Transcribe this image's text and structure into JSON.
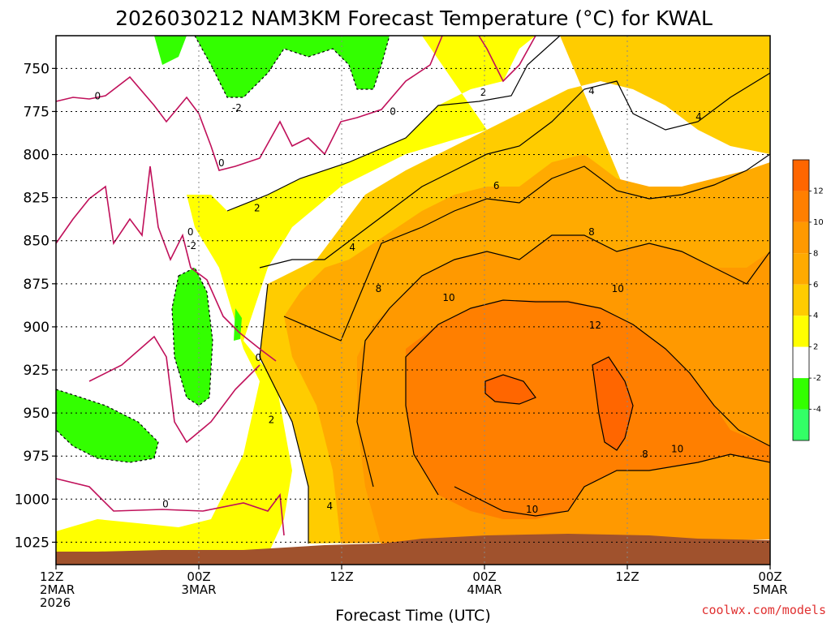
{
  "title": "2026030212 NAM3KM Forecast Temperature (°C) for KWAL",
  "credit": "coolwx.com/models",
  "colors": {
    "band_neg4": "#33ff66",
    "band_neg2": "#33ff00",
    "band_0": "#ffffff",
    "band_2": "#ffff00",
    "band_4": "#ffcc00",
    "band_6": "#ffaa00",
    "band_8": "#ff9900",
    "band_10": "#ff7f00",
    "band_12": "#ff6600",
    "ground": "#a0522d",
    "freezing_line": "#c0105a",
    "contour": "#000000"
  },
  "chart_data": {
    "type": "heatmap",
    "xlabel": "Forecast Time (UTC)",
    "ylabel": "",
    "x_ticks": [
      {
        "hour": 0,
        "lines": [
          "12Z",
          "2MAR",
          "2026"
        ]
      },
      {
        "hour": 12,
        "lines": [
          "00Z",
          "3MAR"
        ]
      },
      {
        "hour": 24,
        "lines": [
          "12Z"
        ]
      },
      {
        "hour": 36,
        "lines": [
          "00Z",
          "4MAR"
        ]
      },
      {
        "hour": 48,
        "lines": [
          "12Z"
        ]
      },
      {
        "hour": 60,
        "lines": [
          "00Z",
          "5MAR"
        ]
      }
    ],
    "xlim": [
      0,
      60
    ],
    "y_ticks": [
      750,
      775,
      800,
      825,
      850,
      875,
      900,
      925,
      950,
      975,
      1000,
      1025
    ],
    "ylim": [
      731,
      1038
    ],
    "colorbar": {
      "ticks": [
        12,
        10,
        8,
        6,
        4,
        2,
        -2,
        -4
      ]
    },
    "temperature_levels": [
      -4,
      -2,
      0,
      2,
      4,
      6,
      8,
      10,
      12
    ],
    "contour_labels": [
      {
        "text": "0",
        "hour": 3.5,
        "pres": 766
      },
      {
        "text": "-2",
        "hour": 15.2,
        "pres": 773
      },
      {
        "text": "0",
        "hour": 13.9,
        "pres": 805
      },
      {
        "text": "0",
        "hour": 11.3,
        "pres": 845
      },
      {
        "text": "-2",
        "hour": 11.4,
        "pres": 853
      },
      {
        "text": "2",
        "hour": 16.9,
        "pres": 831
      },
      {
        "text": "0",
        "hour": 28.3,
        "pres": 775
      },
      {
        "text": "2",
        "hour": 35.9,
        "pres": 764
      },
      {
        "text": "4",
        "hour": 45.0,
        "pres": 763
      },
      {
        "text": "4",
        "hour": 54.0,
        "pres": 778
      },
      {
        "text": "6",
        "hour": 37.0,
        "pres": 818
      },
      {
        "text": "8",
        "hour": 45.0,
        "pres": 845
      },
      {
        "text": "4",
        "hour": 24.9,
        "pres": 854
      },
      {
        "text": "8",
        "hour": 27.1,
        "pres": 878
      },
      {
        "text": "10",
        "hour": 33.0,
        "pres": 883
      },
      {
        "text": "10",
        "hour": 47.2,
        "pres": 878
      },
      {
        "text": "12",
        "hour": 45.3,
        "pres": 899
      },
      {
        "text": "0",
        "hour": 17.0,
        "pres": 918
      },
      {
        "text": "2",
        "hour": 18.1,
        "pres": 954
      },
      {
        "text": "8",
        "hour": 49.5,
        "pres": 974
      },
      {
        "text": "10",
        "hour": 52.2,
        "pres": 971
      },
      {
        "text": "10",
        "hour": 40.0,
        "pres": 1006
      },
      {
        "text": "4",
        "hour": 23.0,
        "pres": 1004
      },
      {
        "text": "0",
        "hour": 9.2,
        "pres": 1003
      }
    ]
  }
}
